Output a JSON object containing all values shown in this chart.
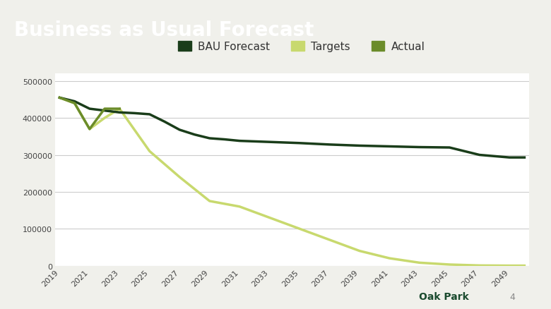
{
  "title": "Business as Usual Forecast",
  "title_bg_color": "#2e8b3a",
  "title_text_color": "#ffffff",
  "title_fontsize": 20,
  "chart_bg_color": "#f0f0eb",
  "plot_bg_color": "#ffffff",
  "footer_text": "Oak Park",
  "footer_number": "4",
  "footer_color": "#1a4a2e",
  "bau_years": [
    2019,
    2020,
    2021,
    2022,
    2023,
    2024,
    2025,
    2026,
    2027,
    2028,
    2029,
    2030,
    2031,
    2033,
    2035,
    2037,
    2039,
    2041,
    2043,
    2045,
    2047,
    2049,
    2050
  ],
  "bau_values": [
    455000,
    445000,
    425000,
    420000,
    415000,
    413000,
    410000,
    390000,
    368000,
    355000,
    345000,
    342000,
    338000,
    335000,
    332000,
    328000,
    325000,
    323000,
    321000,
    320000,
    300000,
    293000,
    293000
  ],
  "bau_color": "#1a3d1a",
  "bau_linewidth": 2.5,
  "targets_years": [
    2019,
    2020,
    2021,
    2022,
    2023,
    2025,
    2027,
    2029,
    2031,
    2033,
    2035,
    2037,
    2039,
    2041,
    2043,
    2045,
    2047,
    2049,
    2050
  ],
  "targets_values": [
    455000,
    440000,
    370000,
    400000,
    425000,
    310000,
    240000,
    175000,
    160000,
    130000,
    100000,
    70000,
    40000,
    20000,
    8000,
    3000,
    500,
    0,
    0
  ],
  "targets_color": "#c8d96e",
  "targets_linewidth": 2.5,
  "actual_years": [
    2019,
    2020,
    2021,
    2022,
    2023
  ],
  "actual_values": [
    455000,
    440000,
    370000,
    425000,
    425000
  ],
  "actual_color": "#6b8c2a",
  "actual_linewidth": 2.5,
  "ylim": [
    0,
    520000
  ],
  "yticks": [
    0,
    100000,
    200000,
    300000,
    400000,
    500000
  ],
  "ytick_labels": [
    "0",
    "100000",
    "200000",
    "300000",
    "400000",
    "500000"
  ],
  "xtick_years": [
    2019,
    2021,
    2023,
    2025,
    2027,
    2029,
    2031,
    2033,
    2035,
    2037,
    2039,
    2041,
    2043,
    2045,
    2047,
    2049
  ],
  "grid_color": "#cccccc",
  "tick_fontsize": 8,
  "legend_fontsize": 11,
  "xlim_left": 2018.7,
  "xlim_right": 2050.3
}
